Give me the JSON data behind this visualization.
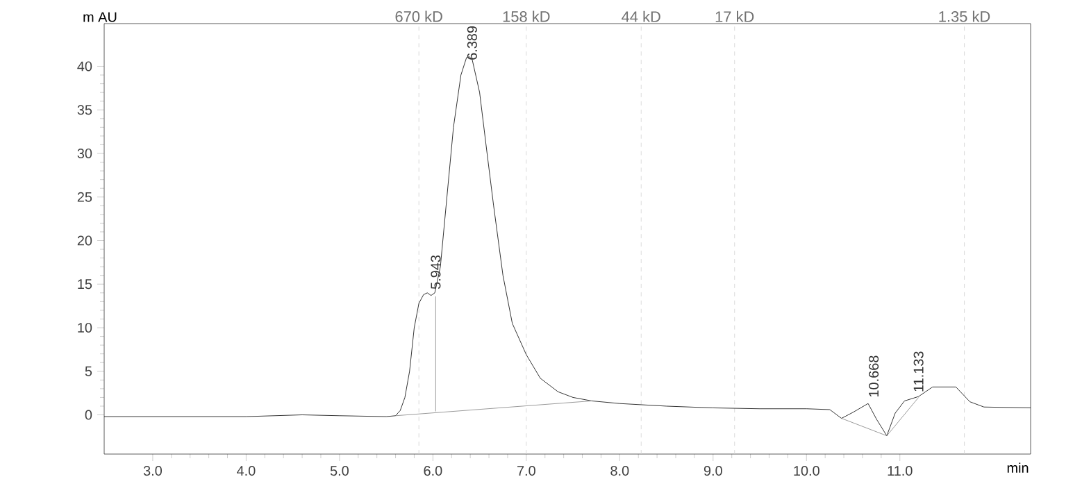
{
  "chart_data": {
    "type": "line",
    "xlabel": "min",
    "ylabel": "m AU",
    "xlim": [
      2.48,
      12.4
    ],
    "ylim": [
      -4.5,
      44.9
    ],
    "xticks": [
      {
        "value": 3,
        "label": "3.0"
      },
      {
        "value": 4,
        "label": "4.0"
      },
      {
        "value": 5,
        "label": "5.0"
      },
      {
        "value": 6,
        "label": "6.0"
      },
      {
        "value": 7,
        "label": "7.0"
      },
      {
        "value": 8,
        "label": "8.0"
      },
      {
        "value": 9,
        "label": "9.0"
      },
      {
        "value": 10,
        "label": "10.0"
      },
      {
        "value": 11,
        "label": "11.0"
      }
    ],
    "yticks": [
      0,
      5,
      10,
      15,
      20,
      25,
      30,
      35,
      40
    ],
    "series": [
      {
        "color": "#000000",
        "x": [
          2.48,
          4.0,
          4.6,
          5.0,
          5.5,
          5.6,
          5.65,
          5.7,
          5.75,
          5.8,
          5.85,
          5.9,
          5.94,
          5.98,
          6.02,
          6.08,
          6.15,
          6.22,
          6.3,
          6.36,
          6.39,
          6.42,
          6.5,
          6.58,
          6.65,
          6.75,
          6.85,
          7.0,
          7.15,
          7.34,
          7.5,
          7.7,
          8.0,
          8.5,
          9.0,
          9.5,
          10.0,
          10.25,
          10.375,
          10.5,
          10.66,
          10.75,
          10.86,
          10.95,
          11.05,
          11.2,
          11.35,
          11.6,
          11.75,
          11.9,
          12.4
        ],
        "values": [
          -0.2,
          -0.2,
          0,
          -0.1,
          -0.2,
          -0.1,
          0.5,
          2,
          5,
          10,
          12.8,
          13.8,
          14,
          13.7,
          14,
          17,
          25,
          33,
          39,
          41,
          41.1,
          40.8,
          37,
          30,
          24,
          16,
          10.5,
          6.9,
          4.2,
          2.65,
          2.0,
          1.6,
          1.3,
          1.0,
          0.8,
          0.7,
          0.7,
          0.6,
          -0.4,
          0.3,
          1.3,
          -0.5,
          -2.4,
          0.2,
          1.6,
          2.1,
          3.2,
          3.2,
          1.5,
          0.9,
          0.8
        ]
      },
      {
        "color": "#808080",
        "x": [
          5.6,
          7.7
        ],
        "values": [
          -0.1,
          1.6
        ]
      },
      {
        "color": "#808080",
        "x": [
          6.03,
          6.03
        ],
        "values": [
          0.4,
          13.6
        ]
      },
      {
        "color": "#808080",
        "x": [
          10.375,
          10.86,
          11.2
        ],
        "values": [
          -0.4,
          -2.4,
          2.0
        ]
      }
    ],
    "ref_lines": [
      {
        "axis": "x",
        "value": 5.85,
        "label": "670 kD",
        "color": "#d0d0d0",
        "line_style": "dashed"
      },
      {
        "axis": "x",
        "value": 7.0,
        "label": "158 kD",
        "color": "#d0d0d0",
        "line_style": "dashed"
      },
      {
        "axis": "x",
        "value": 8.23,
        "label": "44 kD",
        "color": "#d0d0d0",
        "line_style": "dashed"
      },
      {
        "axis": "x",
        "value": 9.23,
        "label": "17 kD",
        "color": "#d0d0d0",
        "line_style": "dashed"
      },
      {
        "axis": "x",
        "value": 11.69,
        "label": "1.35 kD",
        "color": "#d0d0d0",
        "line_style": "dashed"
      }
    ],
    "annotations": [
      {
        "text": "5.943",
        "x": 6.03,
        "y": 14.2
      },
      {
        "text": "6.389",
        "x": 6.42,
        "y": 40.5
      },
      {
        "text": "10.668",
        "x": 10.72,
        "y": 1.8
      },
      {
        "text": "11.133",
        "x": 11.2,
        "y": 2.4
      }
    ]
  }
}
